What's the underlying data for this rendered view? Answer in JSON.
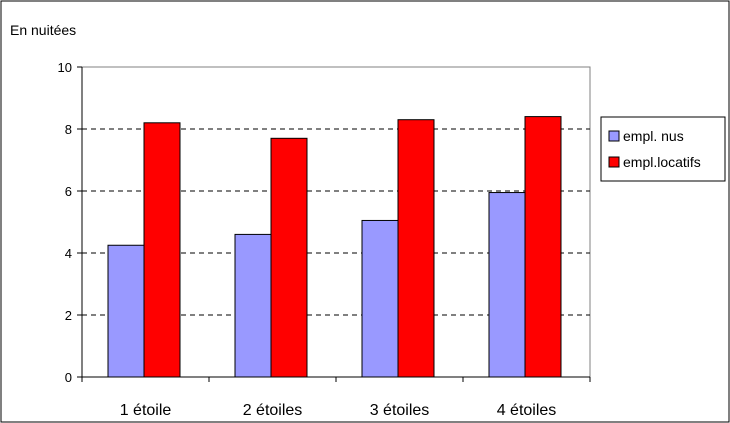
{
  "chart_data": {
    "type": "bar",
    "ylabel": "En nuitées",
    "categories": [
      "1 étoile",
      "2 étoiles",
      "3 étoiles",
      "4 étoiles"
    ],
    "series": [
      {
        "name": "empl. nus",
        "values": [
          4.25,
          4.6,
          5.05,
          5.95
        ],
        "color": "#9999ff"
      },
      {
        "name": "empl.locatifs",
        "values": [
          8.2,
          7.7,
          8.3,
          8.4
        ],
        "color": "#ff0000"
      }
    ],
    "ylim": [
      0,
      10
    ],
    "yticks": [
      "0",
      "2",
      "4",
      "6",
      "8",
      "10"
    ],
    "grid": true,
    "legend_position": "right"
  }
}
